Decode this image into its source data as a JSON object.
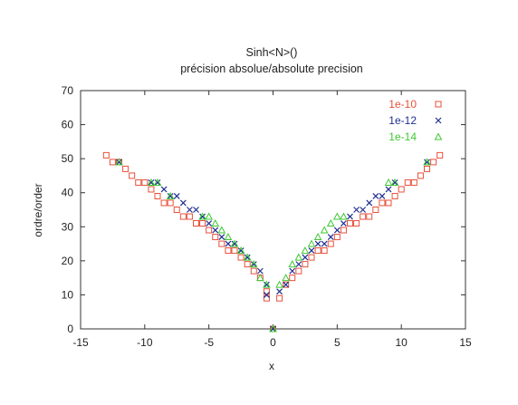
{
  "chart_data": {
    "type": "scatter",
    "title": "Sinh<N>()",
    "subtitle": "précision absolue/absolute precision",
    "xlabel": "x",
    "ylabel": "ordre/order",
    "xlim": [
      -15,
      15
    ],
    "ylim": [
      0,
      70
    ],
    "x_ticks": [
      "-15",
      "-10",
      "-5",
      "0",
      "5",
      "10",
      "15"
    ],
    "y_ticks": [
      "0",
      "10",
      "20",
      "30",
      "40",
      "50",
      "60",
      "70"
    ],
    "x_tick_values": [
      -15,
      -10,
      -5,
      0,
      5,
      10,
      15
    ],
    "y_tick_values": [
      0,
      10,
      20,
      30,
      40,
      50,
      60,
      70
    ],
    "grid": false,
    "legend_position": "top-right",
    "series": [
      {
        "name": "1e-10",
        "marker": "square",
        "color": "#e8503a",
        "points": [
          [
            -13,
            51
          ],
          [
            -12.5,
            49
          ],
          [
            -12,
            49
          ],
          [
            -11.5,
            47
          ],
          [
            -11,
            45
          ],
          [
            -10.5,
            43
          ],
          [
            -10,
            43
          ],
          [
            -9.5,
            41
          ],
          [
            -9,
            39
          ],
          [
            -8.5,
            37
          ],
          [
            -8,
            37
          ],
          [
            -7.5,
            35
          ],
          [
            -7,
            33
          ],
          [
            -6.5,
            33
          ],
          [
            -6,
            31
          ],
          [
            -5.5,
            31
          ],
          [
            -5,
            29
          ],
          [
            -4.5,
            27
          ],
          [
            -4,
            25
          ],
          [
            -3.5,
            23
          ],
          [
            -3,
            23
          ],
          [
            -2.5,
            21
          ],
          [
            -2,
            19
          ],
          [
            -1.5,
            17
          ],
          [
            -1,
            15
          ],
          [
            -0.5,
            11
          ],
          [
            0,
            0
          ],
          [
            0.5,
            9
          ],
          [
            1,
            13
          ],
          [
            1.5,
            15
          ],
          [
            2,
            17
          ],
          [
            2.5,
            19
          ],
          [
            3,
            21
          ],
          [
            3.5,
            23
          ],
          [
            4,
            23
          ],
          [
            4.5,
            25
          ],
          [
            5,
            27
          ],
          [
            5.5,
            29
          ],
          [
            6,
            31
          ],
          [
            6.5,
            31
          ],
          [
            7,
            33
          ],
          [
            7.5,
            33
          ],
          [
            8,
            35
          ],
          [
            8.5,
            37
          ],
          [
            9,
            37
          ],
          [
            9.5,
            39
          ],
          [
            10,
            41
          ],
          [
            10.5,
            43
          ],
          [
            11,
            43
          ],
          [
            11.5,
            45
          ],
          [
            12,
            47
          ],
          [
            12.5,
            49
          ],
          [
            13,
            51
          ],
          [
            -0.5,
            9
          ]
        ]
      },
      {
        "name": "1e-12",
        "marker": "x",
        "color": "#1f2f8f",
        "points": [
          [
            -12,
            49
          ],
          [
            -9.5,
            43
          ],
          [
            -9,
            43
          ],
          [
            -8.5,
            41
          ],
          [
            -8,
            39
          ],
          [
            -7.5,
            39
          ],
          [
            -7,
            37
          ],
          [
            -6.5,
            35
          ],
          [
            -6,
            35
          ],
          [
            -5.5,
            33
          ],
          [
            -5,
            31
          ],
          [
            -4.5,
            29
          ],
          [
            -4,
            27
          ],
          [
            -3.5,
            25
          ],
          [
            -3,
            25
          ],
          [
            -2.5,
            23
          ],
          [
            -2,
            21
          ],
          [
            -1.5,
            19
          ],
          [
            -1,
            17
          ],
          [
            -0.5,
            13
          ],
          [
            0,
            0
          ],
          [
            0.5,
            11
          ],
          [
            1,
            13
          ],
          [
            1.5,
            17
          ],
          [
            2,
            19
          ],
          [
            2.5,
            21
          ],
          [
            3,
            23
          ],
          [
            3.5,
            25
          ],
          [
            4,
            25
          ],
          [
            4.5,
            27
          ],
          [
            5,
            29
          ],
          [
            5.5,
            31
          ],
          [
            6,
            33
          ],
          [
            6.5,
            35
          ],
          [
            7,
            35
          ],
          [
            7.5,
            37
          ],
          [
            8,
            39
          ],
          [
            8.5,
            39
          ],
          [
            9,
            41
          ],
          [
            9.5,
            43
          ],
          [
            12,
            49
          ],
          [
            -0.5,
            10
          ]
        ]
      },
      {
        "name": "1e-14",
        "marker": "triangle",
        "color": "#3ec832",
        "points": [
          [
            -12,
            49
          ],
          [
            -9.5,
            43
          ],
          [
            -9,
            43
          ],
          [
            -8,
            39
          ],
          [
            -5.5,
            33
          ],
          [
            -5,
            33
          ],
          [
            -4.5,
            31
          ],
          [
            -4,
            29
          ],
          [
            -3.5,
            27
          ],
          [
            -3,
            25
          ],
          [
            -2.5,
            23
          ],
          [
            -2,
            21
          ],
          [
            -1.5,
            19
          ],
          [
            -1,
            15
          ],
          [
            -0.5,
            13
          ],
          [
            0,
            0
          ],
          [
            0.5,
            13
          ],
          [
            1,
            15
          ],
          [
            1.5,
            19
          ],
          [
            2,
            21
          ],
          [
            2.5,
            23
          ],
          [
            3,
            25
          ],
          [
            3.5,
            27
          ],
          [
            4,
            29
          ],
          [
            4.5,
            31
          ],
          [
            5,
            33
          ],
          [
            5.5,
            33
          ],
          [
            9,
            43
          ],
          [
            9.5,
            43
          ],
          [
            12,
            49
          ]
        ]
      }
    ]
  }
}
